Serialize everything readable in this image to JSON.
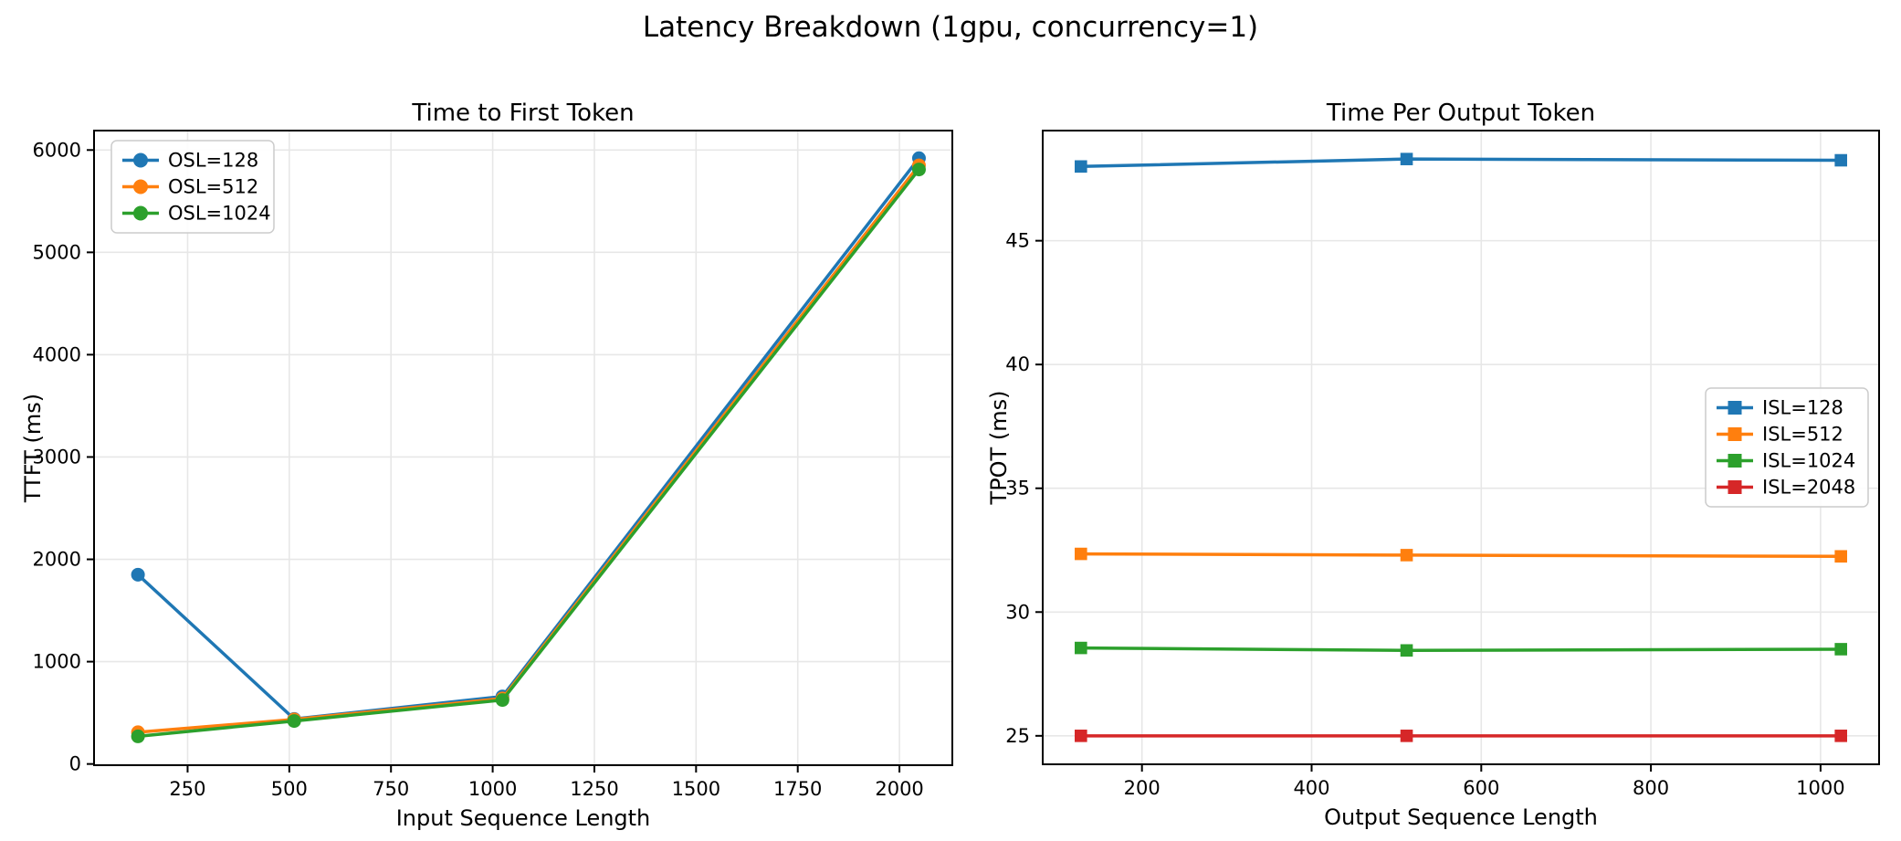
{
  "figure": {
    "suptitle": "Latency Breakdown (1gpu, concurrency=1)"
  },
  "colors": {
    "series_blue": "#1f77b4",
    "series_orange": "#ff7f0e",
    "series_green": "#2ca02c",
    "series_red": "#d62728",
    "grid": "#e7e7e7",
    "spine": "#000000",
    "text": "#000000",
    "legend_border": "#cccccc",
    "legend_fill": "rgba(255,255,255,0.9)",
    "background": "#ffffff"
  },
  "chart_data": [
    {
      "type": "line",
      "title": "Time to First Token",
      "xlabel": "Input Sequence Length",
      "ylabel": "TTFT (ms)",
      "x": [
        128,
        512,
        1024,
        2048
      ],
      "series": [
        {
          "name": "OSL=128",
          "color": "#1f77b4",
          "marker": "circle",
          "values": [
            1850,
            440,
            660,
            5920
          ]
        },
        {
          "name": "OSL=512",
          "color": "#ff7f0e",
          "marker": "circle",
          "values": [
            310,
            435,
            640,
            5850
          ]
        },
        {
          "name": "OSL=1024",
          "color": "#2ca02c",
          "marker": "circle",
          "values": [
            270,
            420,
            625,
            5810
          ]
        }
      ],
      "xlim": [
        20,
        2130
      ],
      "ylim": [
        -12,
        6190
      ],
      "xticks": [
        250,
        500,
        750,
        1000,
        1250,
        1500,
        1750,
        2000
      ],
      "yticks": [
        0,
        1000,
        2000,
        3000,
        4000,
        5000,
        6000
      ],
      "grid": true,
      "legend_position": "upper-left"
    },
    {
      "type": "line",
      "title": "Time Per Output Token",
      "xlabel": "Output Sequence Length",
      "ylabel": "TPOT (ms)",
      "x": [
        128,
        512,
        1024
      ],
      "series": [
        {
          "name": "ISL=128",
          "color": "#1f77b4",
          "marker": "square",
          "values": [
            48.0,
            48.3,
            48.25
          ]
        },
        {
          "name": "ISL=512",
          "color": "#ff7f0e",
          "marker": "square",
          "values": [
            32.35,
            32.3,
            32.25
          ]
        },
        {
          "name": "ISL=1024",
          "color": "#2ca02c",
          "marker": "square",
          "values": [
            28.55,
            28.45,
            28.5
          ]
        },
        {
          "name": "ISL=2048",
          "color": "#d62728",
          "marker": "square",
          "values": [
            25.0,
            25.0,
            25.0
          ]
        }
      ],
      "xlim": [
        83,
        1069
      ],
      "ylim": [
        23.85,
        49.45
      ],
      "xticks": [
        200,
        400,
        600,
        800,
        1000
      ],
      "yticks": [
        25,
        30,
        35,
        40,
        45
      ],
      "grid": true,
      "legend_position": "center-right"
    }
  ]
}
